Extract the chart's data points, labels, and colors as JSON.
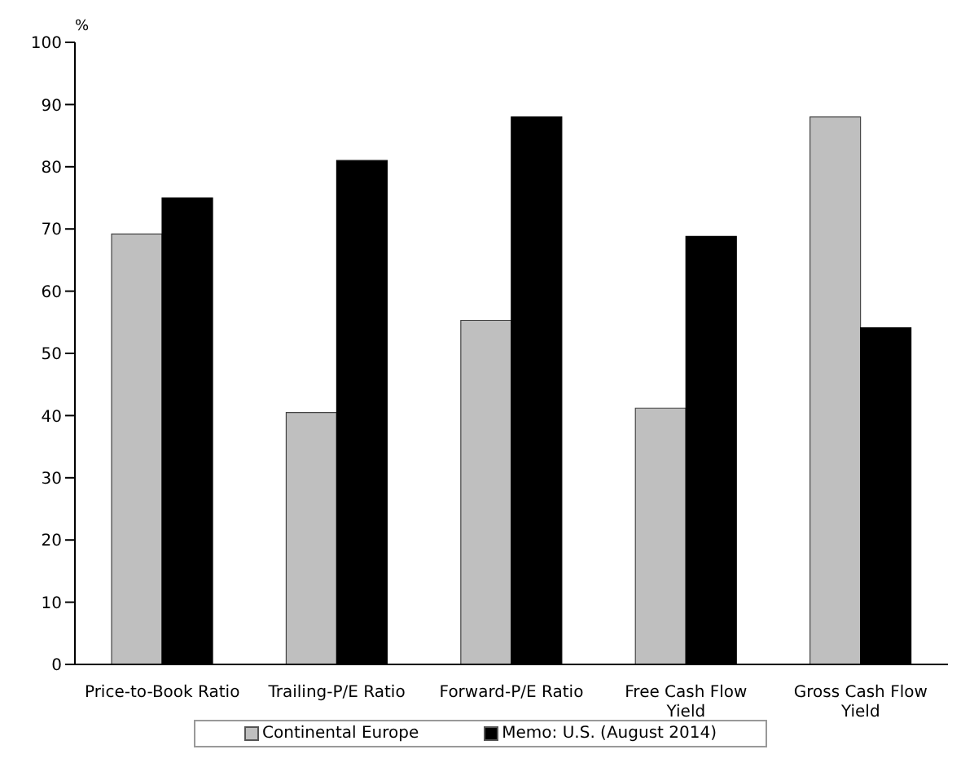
{
  "chart_data": {
    "type": "bar",
    "ylabel": "%",
    "categories": [
      "Price-to-Book Ratio",
      "Trailing-P/E Ratio",
      "Forward-P/E Ratio",
      "Free Cash Flow Yield",
      "Gross Cash Flow Yield"
    ],
    "series": [
      {
        "name": "Continental Europe",
        "color": "#bfbfbf",
        "values": [
          69.2,
          40.5,
          55.3,
          41.2,
          88
        ]
      },
      {
        "name": "Memo: U.S. (August 2014)",
        "color": "#000000",
        "values": [
          75,
          81,
          88,
          68.8,
          54.1
        ]
      }
    ],
    "ylim": [
      0,
      100
    ],
    "yticks": [
      0,
      10,
      20,
      30,
      40,
      50,
      60,
      70,
      80,
      90,
      100
    ],
    "grid": false,
    "legend": "bottom"
  }
}
